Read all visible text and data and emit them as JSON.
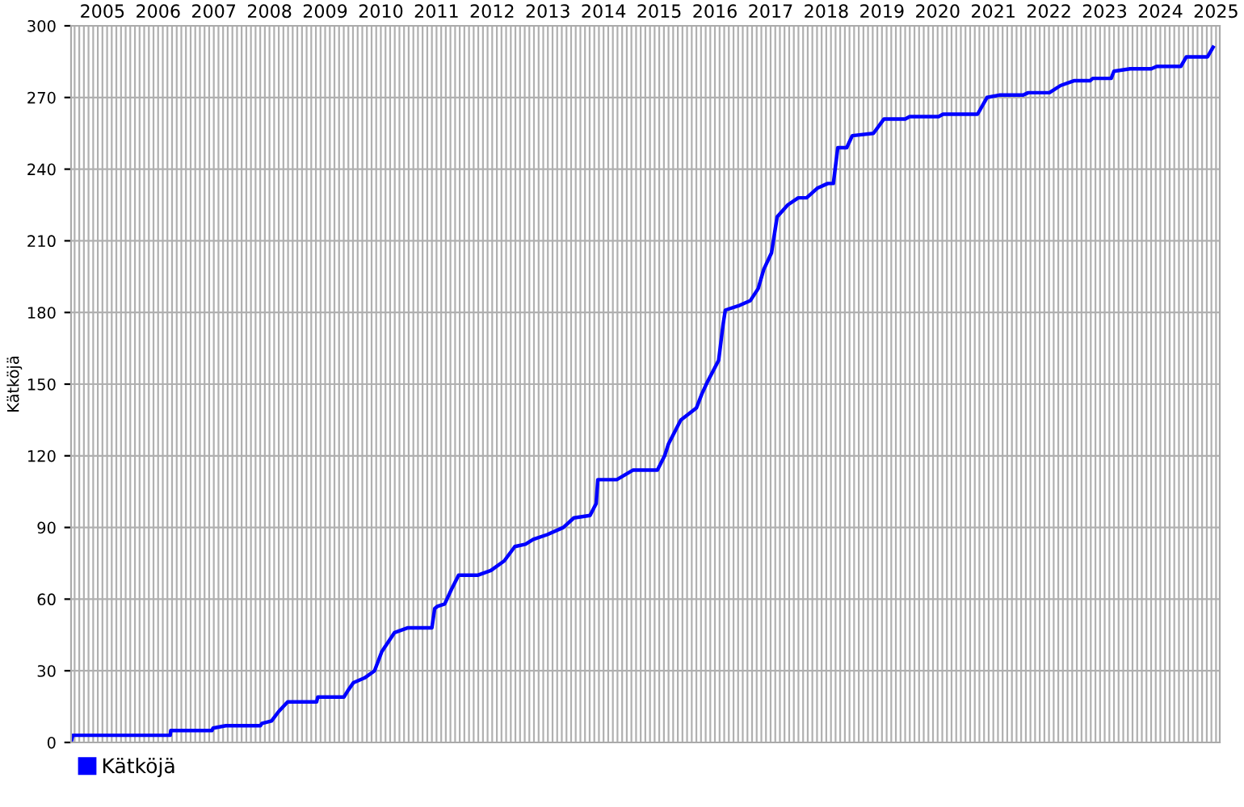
{
  "chart_data": {
    "type": "line",
    "ylabel": "Kätköjä",
    "legend": "bottom left",
    "grid": true,
    "marker": "none",
    "line_style": "solid",
    "xlim": [
      2004.77,
      2025.4
    ],
    "ylim": [
      0,
      300
    ],
    "yticks": [
      0,
      30,
      60,
      90,
      120,
      150,
      180,
      210,
      240,
      270,
      300
    ],
    "xticks": [
      {
        "value": 2004.833,
        "label": null
      },
      {
        "value": 2004.917,
        "label": null
      },
      {
        "value": 2005.0,
        "label": null
      },
      {
        "value": 2005.083,
        "label": null
      },
      {
        "value": 2005.167,
        "label": null
      },
      {
        "value": 2005.25,
        "label": null
      },
      {
        "value": 2005.333,
        "label": "2005"
      },
      {
        "value": 2005.417,
        "label": null
      },
      {
        "value": 2005.5,
        "label": null
      },
      {
        "value": 2005.583,
        "label": null
      },
      {
        "value": 2005.667,
        "label": null
      },
      {
        "value": 2005.75,
        "label": null
      },
      {
        "value": 2005.833,
        "label": null
      },
      {
        "value": 2005.917,
        "label": null
      },
      {
        "value": 2006.0,
        "label": null
      },
      {
        "value": 2006.083,
        "label": null
      },
      {
        "value": 2006.167,
        "label": null
      },
      {
        "value": 2006.25,
        "label": null
      },
      {
        "value": 2006.333,
        "label": "2006"
      },
      {
        "value": 2006.417,
        "label": null
      },
      {
        "value": 2006.5,
        "label": null
      },
      {
        "value": 2006.583,
        "label": null
      },
      {
        "value": 2006.667,
        "label": null
      },
      {
        "value": 2006.75,
        "label": null
      },
      {
        "value": 2006.833,
        "label": null
      },
      {
        "value": 2006.917,
        "label": null
      },
      {
        "value": 2007.0,
        "label": null
      },
      {
        "value": 2007.083,
        "label": null
      },
      {
        "value": 2007.167,
        "label": null
      },
      {
        "value": 2007.25,
        "label": null
      },
      {
        "value": 2007.333,
        "label": "2007"
      },
      {
        "value": 2007.417,
        "label": null
      },
      {
        "value": 2007.5,
        "label": null
      },
      {
        "value": 2007.583,
        "label": null
      },
      {
        "value": 2007.667,
        "label": null
      },
      {
        "value": 2007.75,
        "label": null
      },
      {
        "value": 2007.833,
        "label": null
      },
      {
        "value": 2007.917,
        "label": null
      },
      {
        "value": 2008.0,
        "label": null
      },
      {
        "value": 2008.083,
        "label": null
      },
      {
        "value": 2008.167,
        "label": null
      },
      {
        "value": 2008.25,
        "label": null
      },
      {
        "value": 2008.333,
        "label": "2008"
      },
      {
        "value": 2008.417,
        "label": null
      },
      {
        "value": 2008.5,
        "label": null
      },
      {
        "value": 2008.583,
        "label": null
      },
      {
        "value": 2008.667,
        "label": null
      },
      {
        "value": 2008.75,
        "label": null
      },
      {
        "value": 2008.833,
        "label": null
      },
      {
        "value": 2008.917,
        "label": null
      },
      {
        "value": 2009.0,
        "label": null
      },
      {
        "value": 2009.083,
        "label": null
      },
      {
        "value": 2009.167,
        "label": null
      },
      {
        "value": 2009.25,
        "label": null
      },
      {
        "value": 2009.333,
        "label": "2009"
      },
      {
        "value": 2009.417,
        "label": null
      },
      {
        "value": 2009.5,
        "label": null
      },
      {
        "value": 2009.583,
        "label": null
      },
      {
        "value": 2009.667,
        "label": null
      },
      {
        "value": 2009.75,
        "label": null
      },
      {
        "value": 2009.833,
        "label": null
      },
      {
        "value": 2009.917,
        "label": null
      },
      {
        "value": 2010.0,
        "label": null
      },
      {
        "value": 2010.083,
        "label": null
      },
      {
        "value": 2010.167,
        "label": null
      },
      {
        "value": 2010.25,
        "label": null
      },
      {
        "value": 2010.333,
        "label": "2010"
      },
      {
        "value": 2010.417,
        "label": null
      },
      {
        "value": 2010.5,
        "label": null
      },
      {
        "value": 2010.583,
        "label": null
      },
      {
        "value": 2010.667,
        "label": null
      },
      {
        "value": 2010.75,
        "label": null
      },
      {
        "value": 2010.833,
        "label": null
      },
      {
        "value": 2010.917,
        "label": null
      },
      {
        "value": 2011.0,
        "label": null
      },
      {
        "value": 2011.083,
        "label": null
      },
      {
        "value": 2011.167,
        "label": null
      },
      {
        "value": 2011.25,
        "label": null
      },
      {
        "value": 2011.333,
        "label": "2011"
      },
      {
        "value": 2011.417,
        "label": null
      },
      {
        "value": 2011.5,
        "label": null
      },
      {
        "value": 2011.583,
        "label": null
      },
      {
        "value": 2011.667,
        "label": null
      },
      {
        "value": 2011.75,
        "label": null
      },
      {
        "value": 2011.833,
        "label": null
      },
      {
        "value": 2011.917,
        "label": null
      },
      {
        "value": 2012.0,
        "label": null
      },
      {
        "value": 2012.083,
        "label": null
      },
      {
        "value": 2012.167,
        "label": null
      },
      {
        "value": 2012.25,
        "label": null
      },
      {
        "value": 2012.333,
        "label": "2012"
      },
      {
        "value": 2012.417,
        "label": null
      },
      {
        "value": 2012.5,
        "label": null
      },
      {
        "value": 2012.583,
        "label": null
      },
      {
        "value": 2012.667,
        "label": null
      },
      {
        "value": 2012.75,
        "label": null
      },
      {
        "value": 2012.833,
        "label": null
      },
      {
        "value": 2012.917,
        "label": null
      },
      {
        "value": 2013.0,
        "label": null
      },
      {
        "value": 2013.083,
        "label": null
      },
      {
        "value": 2013.167,
        "label": null
      },
      {
        "value": 2013.25,
        "label": null
      },
      {
        "value": 2013.333,
        "label": "2013"
      },
      {
        "value": 2013.417,
        "label": null
      },
      {
        "value": 2013.5,
        "label": null
      },
      {
        "value": 2013.583,
        "label": null
      },
      {
        "value": 2013.667,
        "label": null
      },
      {
        "value": 2013.75,
        "label": null
      },
      {
        "value": 2013.833,
        "label": null
      },
      {
        "value": 2013.917,
        "label": null
      },
      {
        "value": 2014.0,
        "label": null
      },
      {
        "value": 2014.083,
        "label": null
      },
      {
        "value": 2014.167,
        "label": null
      },
      {
        "value": 2014.25,
        "label": null
      },
      {
        "value": 2014.333,
        "label": "2014"
      },
      {
        "value": 2014.417,
        "label": null
      },
      {
        "value": 2014.5,
        "label": null
      },
      {
        "value": 2014.583,
        "label": null
      },
      {
        "value": 2014.667,
        "label": null
      },
      {
        "value": 2014.75,
        "label": null
      },
      {
        "value": 2014.833,
        "label": null
      },
      {
        "value": 2014.917,
        "label": null
      },
      {
        "value": 2015.0,
        "label": null
      },
      {
        "value": 2015.083,
        "label": null
      },
      {
        "value": 2015.167,
        "label": null
      },
      {
        "value": 2015.25,
        "label": null
      },
      {
        "value": 2015.333,
        "label": "2015"
      },
      {
        "value": 2015.417,
        "label": null
      },
      {
        "value": 2015.5,
        "label": null
      },
      {
        "value": 2015.583,
        "label": null
      },
      {
        "value": 2015.667,
        "label": null
      },
      {
        "value": 2015.75,
        "label": null
      },
      {
        "value": 2015.833,
        "label": null
      },
      {
        "value": 2015.917,
        "label": null
      },
      {
        "value": 2016.0,
        "label": null
      },
      {
        "value": 2016.083,
        "label": null
      },
      {
        "value": 2016.167,
        "label": null
      },
      {
        "value": 2016.25,
        "label": null
      },
      {
        "value": 2016.333,
        "label": "2016"
      },
      {
        "value": 2016.417,
        "label": null
      },
      {
        "value": 2016.5,
        "label": null
      },
      {
        "value": 2016.583,
        "label": null
      },
      {
        "value": 2016.667,
        "label": null
      },
      {
        "value": 2016.75,
        "label": null
      },
      {
        "value": 2016.833,
        "label": null
      },
      {
        "value": 2016.917,
        "label": null
      },
      {
        "value": 2017.0,
        "label": null
      },
      {
        "value": 2017.083,
        "label": null
      },
      {
        "value": 2017.167,
        "label": null
      },
      {
        "value": 2017.25,
        "label": null
      },
      {
        "value": 2017.333,
        "label": "2017"
      },
      {
        "value": 2017.417,
        "label": null
      },
      {
        "value": 2017.5,
        "label": null
      },
      {
        "value": 2017.583,
        "label": null
      },
      {
        "value": 2017.667,
        "label": null
      },
      {
        "value": 2017.75,
        "label": null
      },
      {
        "value": 2017.833,
        "label": null
      },
      {
        "value": 2017.917,
        "label": null
      },
      {
        "value": 2018.0,
        "label": null
      },
      {
        "value": 2018.083,
        "label": null
      },
      {
        "value": 2018.167,
        "label": null
      },
      {
        "value": 2018.25,
        "label": null
      },
      {
        "value": 2018.333,
        "label": "2018"
      },
      {
        "value": 2018.417,
        "label": null
      },
      {
        "value": 2018.5,
        "label": null
      },
      {
        "value": 2018.583,
        "label": null
      },
      {
        "value": 2018.667,
        "label": null
      },
      {
        "value": 2018.75,
        "label": null
      },
      {
        "value": 2018.833,
        "label": null
      },
      {
        "value": 2018.917,
        "label": null
      },
      {
        "value": 2019.0,
        "label": null
      },
      {
        "value": 2019.083,
        "label": null
      },
      {
        "value": 2019.167,
        "label": null
      },
      {
        "value": 2019.25,
        "label": null
      },
      {
        "value": 2019.333,
        "label": "2019"
      },
      {
        "value": 2019.417,
        "label": null
      },
      {
        "value": 2019.5,
        "label": null
      },
      {
        "value": 2019.583,
        "label": null
      },
      {
        "value": 2019.667,
        "label": null
      },
      {
        "value": 2019.75,
        "label": null
      },
      {
        "value": 2019.833,
        "label": null
      },
      {
        "value": 2019.917,
        "label": null
      },
      {
        "value": 2020.0,
        "label": null
      },
      {
        "value": 2020.083,
        "label": null
      },
      {
        "value": 2020.167,
        "label": null
      },
      {
        "value": 2020.25,
        "label": null
      },
      {
        "value": 2020.333,
        "label": "2020"
      },
      {
        "value": 2020.417,
        "label": null
      },
      {
        "value": 2020.5,
        "label": null
      },
      {
        "value": 2020.583,
        "label": null
      },
      {
        "value": 2020.667,
        "label": null
      },
      {
        "value": 2020.75,
        "label": null
      },
      {
        "value": 2020.833,
        "label": null
      },
      {
        "value": 2020.917,
        "label": null
      },
      {
        "value": 2021.0,
        "label": null
      },
      {
        "value": 2021.083,
        "label": null
      },
      {
        "value": 2021.167,
        "label": null
      },
      {
        "value": 2021.25,
        "label": null
      },
      {
        "value": 2021.333,
        "label": "2021"
      },
      {
        "value": 2021.417,
        "label": null
      },
      {
        "value": 2021.5,
        "label": null
      },
      {
        "value": 2021.583,
        "label": null
      },
      {
        "value": 2021.667,
        "label": null
      },
      {
        "value": 2021.75,
        "label": null
      },
      {
        "value": 2021.833,
        "label": null
      },
      {
        "value": 2021.917,
        "label": null
      },
      {
        "value": 2022.0,
        "label": null
      },
      {
        "value": 2022.083,
        "label": null
      },
      {
        "value": 2022.167,
        "label": null
      },
      {
        "value": 2022.25,
        "label": null
      },
      {
        "value": 2022.333,
        "label": "2022"
      },
      {
        "value": 2022.417,
        "label": null
      },
      {
        "value": 2022.5,
        "label": null
      },
      {
        "value": 2022.583,
        "label": null
      },
      {
        "value": 2022.667,
        "label": null
      },
      {
        "value": 2022.75,
        "label": null
      },
      {
        "value": 2022.833,
        "label": null
      },
      {
        "value": 2022.917,
        "label": null
      },
      {
        "value": 2023.0,
        "label": null
      },
      {
        "value": 2023.083,
        "label": null
      },
      {
        "value": 2023.167,
        "label": null
      },
      {
        "value": 2023.25,
        "label": null
      },
      {
        "value": 2023.333,
        "label": "2023"
      },
      {
        "value": 2023.417,
        "label": null
      },
      {
        "value": 2023.5,
        "label": null
      },
      {
        "value": 2023.583,
        "label": null
      },
      {
        "value": 2023.667,
        "label": null
      },
      {
        "value": 2023.75,
        "label": null
      },
      {
        "value": 2023.833,
        "label": null
      },
      {
        "value": 2023.917,
        "label": null
      },
      {
        "value": 2024.0,
        "label": null
      },
      {
        "value": 2024.083,
        "label": null
      },
      {
        "value": 2024.167,
        "label": null
      },
      {
        "value": 2024.25,
        "label": null
      },
      {
        "value": 2024.333,
        "label": "2024"
      },
      {
        "value": 2024.417,
        "label": null
      },
      {
        "value": 2024.5,
        "label": null
      },
      {
        "value": 2024.583,
        "label": null
      },
      {
        "value": 2024.667,
        "label": null
      },
      {
        "value": 2024.75,
        "label": null
      },
      {
        "value": 2024.833,
        "label": null
      },
      {
        "value": 2024.917,
        "label": null
      },
      {
        "value": 2025.0,
        "label": null
      },
      {
        "value": 2025.083,
        "label": null
      },
      {
        "value": 2025.167,
        "label": null
      },
      {
        "value": 2025.25,
        "label": null
      },
      {
        "value": 2025.333,
        "label": "2025"
      }
    ],
    "series": [
      {
        "name": "Kätköjä",
        "color": "#0000ff",
        "x": [
          2004.77,
          2004.8,
          2006.55,
          2006.56,
          2007.3,
          2007.32,
          2007.55,
          2008.17,
          2008.2,
          2008.37,
          2008.5,
          2008.66,
          2009.18,
          2009.2,
          2009.67,
          2009.75,
          2009.84,
          2010.04,
          2010.22,
          2010.35,
          2010.58,
          2010.82,
          2011.25,
          2011.3,
          2011.35,
          2011.48,
          2011.6,
          2011.73,
          2012.07,
          2012.31,
          2012.55,
          2012.74,
          2012.93,
          2013.07,
          2013.32,
          2013.61,
          2013.8,
          2014.09,
          2014.2,
          2014.23,
          2014.57,
          2014.86,
          2015.3,
          2015.43,
          2015.5,
          2015.72,
          2016.0,
          2016.1,
          2016.2,
          2016.4,
          2016.48,
          2016.52,
          2016.78,
          2016.97,
          2017.11,
          2017.21,
          2017.35,
          2017.45,
          2017.64,
          2017.83,
          2017.98,
          2018.17,
          2018.36,
          2018.46,
          2018.54,
          2018.7,
          2018.8,
          2019.18,
          2019.37,
          2019.75,
          2019.83,
          2020.35,
          2020.43,
          2021.05,
          2021.22,
          2021.44,
          2021.87,
          2021.96,
          2022.34,
          2022.54,
          2022.78,
          2023.07,
          2023.12,
          2023.45,
          2023.5,
          2023.79,
          2024.17,
          2024.27,
          2024.7,
          2024.8,
          2025.18,
          2025.28
        ],
        "values": [
          0,
          3,
          3,
          5,
          5,
          6,
          7,
          7,
          8,
          9,
          13,
          17,
          17,
          19,
          19,
          22,
          25,
          27,
          30,
          38,
          46,
          48,
          48,
          56,
          57,
          58,
          64,
          70,
          70,
          72,
          76,
          82,
          83,
          85,
          87,
          90,
          94,
          95,
          100,
          110,
          110,
          114,
          114,
          120,
          125,
          135,
          140,
          146,
          151,
          160,
          175,
          181,
          183,
          185,
          190,
          198,
          205,
          220,
          225,
          228,
          228,
          232,
          234,
          234,
          249,
          249,
          254,
          255,
          261,
          261,
          262,
          262,
          263,
          263,
          270,
          271,
          271,
          272,
          272,
          275,
          277,
          277,
          278,
          278,
          281,
          282,
          282,
          283,
          283,
          287,
          287,
          291
        ]
      }
    ]
  }
}
